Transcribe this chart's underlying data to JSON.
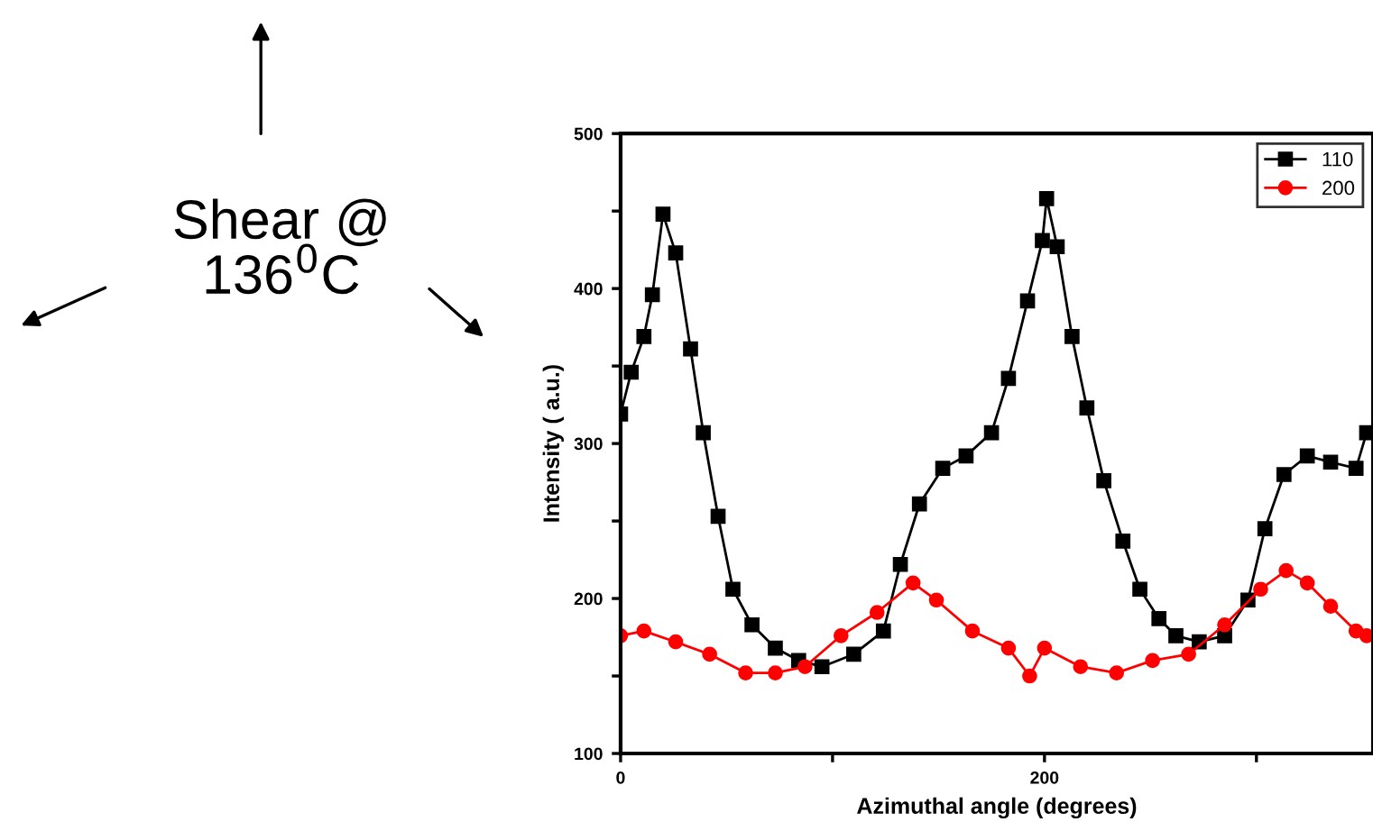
{
  "chart_data": {
    "type": "line",
    "xlabel": "Azimuthal angle (degrees)",
    "ylabel": "Intensity ( a.u.)",
    "annotations": [
      "Shear @\n136$^{0}$C"
    ],
    "xlim": [
      0,
      355
    ],
    "ylim": [
      100,
      500
    ],
    "xticks": [
      0,
      {
        "value": 100,
        "label": null
      },
      200,
      {
        "value": 300,
        "label": null
      }
    ],
    "yticks": [
      100,
      {
        "value": 150,
        "label": null
      },
      200,
      {
        "value": 250,
        "label": null
      },
      300,
      {
        "value": 350,
        "label": null
      },
      400,
      {
        "value": 450,
        "label": null
      },
      500
    ],
    "legend": "top right",
    "line_style": "solid",
    "grid": false,
    "series": [
      {
        "name": "110",
        "color": "#000000",
        "marker": "square",
        "x": [
          0,
          5,
          11,
          15,
          20,
          26,
          33,
          39,
          46,
          53,
          62,
          73,
          84,
          95,
          110,
          124,
          132,
          141,
          152,
          163,
          175,
          183,
          192,
          199,
          201,
          206,
          213,
          220,
          228,
          237,
          245,
          254,
          262,
          273,
          285,
          296,
          304,
          313,
          324,
          335,
          347,
          352
        ],
        "values": [
          319,
          346,
          369,
          396,
          448,
          423,
          361,
          307,
          253,
          206,
          183,
          168,
          160,
          156,
          164,
          179,
          222,
          261,
          284,
          292,
          307,
          342,
          392,
          431,
          458,
          427,
          369,
          323,
          276,
          237,
          206,
          187,
          176,
          172,
          176,
          199,
          245,
          280,
          292,
          288,
          284,
          307
        ]
      },
      {
        "name": "200",
        "color": "#ff0000",
        "marker": "circle",
        "x": [
          0,
          11,
          26,
          42,
          59,
          73,
          87,
          104,
          121,
          138,
          149,
          166,
          183,
          193,
          200,
          217,
          234,
          251,
          268,
          285,
          302,
          314,
          324,
          335,
          347,
          352
        ],
        "values": [
          176,
          179,
          172,
          164,
          152,
          152,
          156,
          176,
          191,
          210,
          199,
          179,
          168,
          150,
          168,
          156,
          152,
          160,
          164,
          183,
          206,
          218,
          210,
          195,
          179,
          176
        ]
      }
    ]
  }
}
